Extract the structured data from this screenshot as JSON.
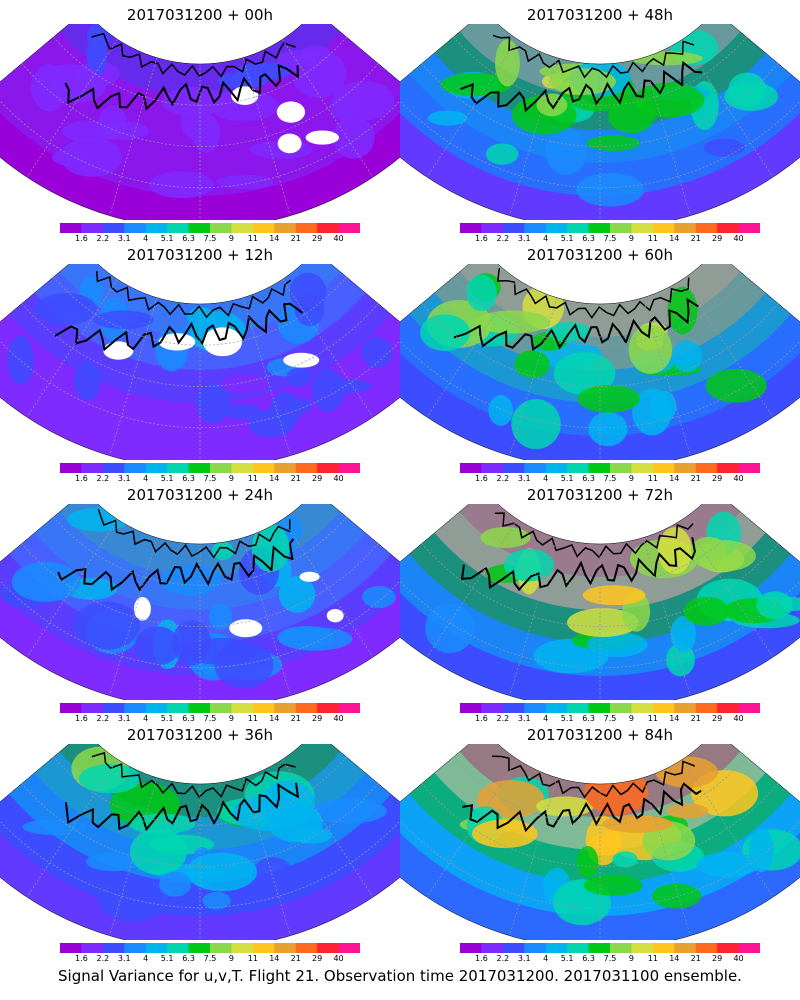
{
  "panels": [
    {
      "title": "2017031200 + 00h",
      "intensity": 0.15
    },
    {
      "title": "2017031200 + 48h",
      "intensity": 0.62
    },
    {
      "title": "2017031200 + 12h",
      "intensity": 0.3
    },
    {
      "title": "2017031200 + 60h",
      "intensity": 0.7
    },
    {
      "title": "2017031200 + 24h",
      "intensity": 0.42
    },
    {
      "title": "2017031200 + 72h",
      "intensity": 0.8
    },
    {
      "title": "2017031200 + 36h",
      "intensity": 0.52
    },
    {
      "title": "2017031200 + 84h",
      "intensity": 0.88
    }
  ],
  "colorbar": {
    "colors": [
      "#9a00d8",
      "#7f2aff",
      "#3d4cff",
      "#1a8cff",
      "#00b4f0",
      "#00d6b0",
      "#00c814",
      "#8cd84a",
      "#d4e040",
      "#ffc61e",
      "#e8a030",
      "#ff6a1e",
      "#ff2030",
      "#ff1493"
    ],
    "labels": [
      "1.6",
      "2.2",
      "3.1",
      "4",
      "5.1",
      "6.3",
      "7.5",
      "9",
      "11",
      "14",
      "21",
      "29",
      "40"
    ]
  },
  "footer": "Signal Variance for u,v,T. Flight 21. Observation time 2017031200. 2017031100 ensemble."
}
